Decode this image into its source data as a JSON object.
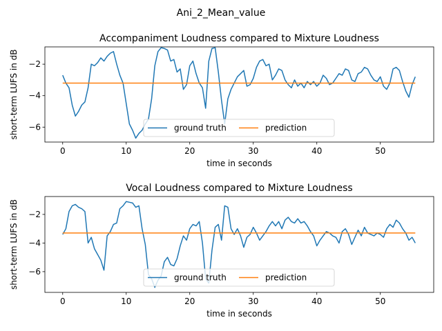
{
  "figure": {
    "suptitle": "Ani_2_Mean_value"
  },
  "chart_data": [
    {
      "type": "line",
      "title": "Accompaniment Loudness compared to Mixture Loudness",
      "xlabel": "time in seconds",
      "ylabel": "short-term LUFS in dB",
      "xlim": [
        -2.8,
        58.4
      ],
      "ylim": [
        -6.95,
        -0.9
      ],
      "xticks": [
        0,
        10,
        20,
        30,
        40,
        50
      ],
      "yticks": [
        -2,
        -4,
        -6
      ],
      "legend": {
        "placement": "lower center",
        "ncol": 2
      },
      "series": [
        {
          "name": "ground truth",
          "color": "#1f77b4",
          "x": [
            0,
            0.5,
            1,
            1.5,
            2,
            2.5,
            3,
            3.5,
            4,
            4.5,
            5,
            5.5,
            6,
            6.5,
            7,
            7.5,
            8,
            8.5,
            9,
            9.5,
            10,
            10.5,
            11,
            11.5,
            12,
            12.5,
            13,
            13.5,
            14,
            14.5,
            15,
            15.5,
            16,
            16.5,
            17,
            17.5,
            18,
            18.5,
            19,
            19.5,
            20,
            20.5,
            21,
            21.5,
            22,
            22.5,
            23,
            23.5,
            24,
            24.5,
            25,
            25.5,
            26,
            26.5,
            27,
            27.5,
            28,
            28.5,
            29,
            29.5,
            30,
            30.5,
            31,
            31.5,
            32,
            32.5,
            33,
            33.5,
            34,
            34.5,
            35,
            35.5,
            36,
            36.5,
            37,
            37.5,
            38,
            38.5,
            39,
            39.5,
            40,
            40.5,
            41,
            41.5,
            42,
            42.5,
            43,
            43.5,
            44,
            44.5,
            45,
            45.5,
            46,
            46.5,
            47,
            47.5,
            48,
            48.5,
            49,
            49.5,
            50,
            50.5,
            51,
            51.5,
            52,
            52.5,
            53,
            53.5,
            54,
            54.5,
            55,
            55.5
          ],
          "y": [
            -2.7,
            -3.2,
            -3.5,
            -4.6,
            -5.3,
            -5.0,
            -4.6,
            -4.4,
            -3.5,
            -2.0,
            -2.1,
            -1.9,
            -1.6,
            -1.8,
            -1.5,
            -1.3,
            -1.2,
            -2.0,
            -2.7,
            -3.2,
            -4.5,
            -5.8,
            -6.2,
            -6.7,
            -6.4,
            -6.2,
            -5.8,
            -5.5,
            -4.2,
            -2.1,
            -1.2,
            -0.95,
            -1.0,
            -1.1,
            -1.8,
            -1.7,
            -2.5,
            -2.3,
            -3.6,
            -3.3,
            -2.1,
            -1.8,
            -2.6,
            -3.2,
            -3.5,
            -4.8,
            -1.8,
            -1.0,
            -0.95,
            -2.5,
            -4.3,
            -5.8,
            -4.2,
            -3.6,
            -3.2,
            -2.8,
            -2.6,
            -2.4,
            -3.4,
            -3.3,
            -2.9,
            -2.2,
            -1.8,
            -1.7,
            -2.1,
            -2.0,
            -3.0,
            -2.7,
            -2.3,
            -2.4,
            -3.0,
            -3.3,
            -3.5,
            -3.0,
            -3.4,
            -3.2,
            -3.5,
            -3.1,
            -3.3,
            -3.1,
            -3.4,
            -3.2,
            -2.7,
            -2.9,
            -3.3,
            -3.2,
            -2.9,
            -2.6,
            -2.7,
            -2.3,
            -2.4,
            -3.0,
            -3.1,
            -2.6,
            -2.5,
            -2.2,
            -2.3,
            -2.7,
            -3.0,
            -3.1,
            -2.8,
            -3.4,
            -3.6,
            -3.2,
            -2.3,
            -2.2,
            -2.4,
            -3.1,
            -3.7,
            -4.1,
            -3.3,
            -2.8
          ]
        },
        {
          "name": "prediction",
          "color": "#ff7f0e",
          "x": [
            0,
            55.5
          ],
          "y": [
            -3.2,
            -3.2
          ]
        }
      ]
    },
    {
      "type": "line",
      "title": "Vocal Loudness compared to Mixture Loudness",
      "xlabel": "time in seconds",
      "ylabel": "short-term LUFS in dB",
      "xlim": [
        -2.8,
        58.4
      ],
      "ylim": [
        -7.45,
        -0.75
      ],
      "xticks": [
        0,
        10,
        20,
        30,
        40,
        50
      ],
      "yticks": [
        -2,
        -4,
        -6
      ],
      "legend": {
        "placement": "lower center",
        "ncol": 2
      },
      "series": [
        {
          "name": "ground truth",
          "color": "#1f77b4",
          "x": [
            0,
            0.5,
            1,
            1.5,
            2,
            2.5,
            3,
            3.5,
            4,
            4.5,
            5,
            5.5,
            6,
            6.5,
            7,
            7.5,
            8,
            8.5,
            9,
            9.5,
            10,
            10.5,
            11,
            11.5,
            12,
            12.5,
            13,
            13.5,
            14,
            14.5,
            15,
            15.5,
            16,
            16.5,
            17,
            17.5,
            18,
            18.5,
            19,
            19.5,
            20,
            20.5,
            21,
            21.5,
            22,
            22.5,
            23,
            23.5,
            24,
            24.5,
            25,
            25.5,
            26,
            26.5,
            27,
            27.5,
            28,
            28.5,
            29,
            29.5,
            30,
            30.5,
            31,
            31.5,
            32,
            32.5,
            33,
            33.5,
            34,
            34.5,
            35,
            35.5,
            36,
            36.5,
            37,
            37.5,
            38,
            38.5,
            39,
            39.5,
            40,
            40.5,
            41,
            41.5,
            42,
            42.5,
            43,
            43.5,
            44,
            44.5,
            45,
            45.5,
            46,
            46.5,
            47,
            47.5,
            48,
            48.5,
            49,
            49.5,
            50,
            50.5,
            51,
            51.5,
            52,
            52.5,
            53,
            53.5,
            54,
            54.5,
            55,
            55.5
          ],
          "y": [
            -3.4,
            -3.0,
            -1.8,
            -1.4,
            -1.3,
            -1.5,
            -1.6,
            -1.8,
            -4.0,
            -3.6,
            -4.4,
            -4.8,
            -5.2,
            -5.9,
            -3.5,
            -3.2,
            -2.7,
            -2.6,
            -1.6,
            -1.4,
            -1.1,
            -1.15,
            -1.2,
            -1.5,
            -1.4,
            -3.0,
            -4.1,
            -6.2,
            -6.5,
            -7.1,
            -6.6,
            -6.3,
            -5.3,
            -5.0,
            -5.5,
            -5.6,
            -5.1,
            -4.2,
            -3.5,
            -3.8,
            -3.0,
            -2.7,
            -2.8,
            -2.5,
            -4.0,
            -6.5,
            -6.8,
            -4.5,
            -2.9,
            -2.7,
            -3.8,
            -1.4,
            -1.5,
            -3.0,
            -3.4,
            -3.0,
            -3.5,
            -4.3,
            -3.6,
            -3.4,
            -2.9,
            -3.3,
            -3.8,
            -3.5,
            -3.2,
            -2.8,
            -2.5,
            -2.8,
            -2.5,
            -3.0,
            -2.4,
            -2.2,
            -2.5,
            -2.6,
            -2.3,
            -2.6,
            -2.5,
            -2.8,
            -3.2,
            -3.5,
            -4.2,
            -3.8,
            -3.5,
            -3.2,
            -3.3,
            -3.5,
            -3.6,
            -4.0,
            -3.2,
            -3.0,
            -3.4,
            -4.1,
            -3.6,
            -3.1,
            -3.5,
            -2.9,
            -3.3,
            -3.4,
            -3.5,
            -3.3,
            -3.4,
            -3.6,
            -3.0,
            -2.7,
            -2.9,
            -2.4,
            -2.6,
            -3.0,
            -3.3,
            -3.8,
            -3.6,
            -4.0
          ]
        },
        {
          "name": "prediction",
          "color": "#ff7f0e",
          "x": [
            0,
            55.5
          ],
          "y": [
            -3.3,
            -3.3
          ]
        }
      ]
    }
  ]
}
